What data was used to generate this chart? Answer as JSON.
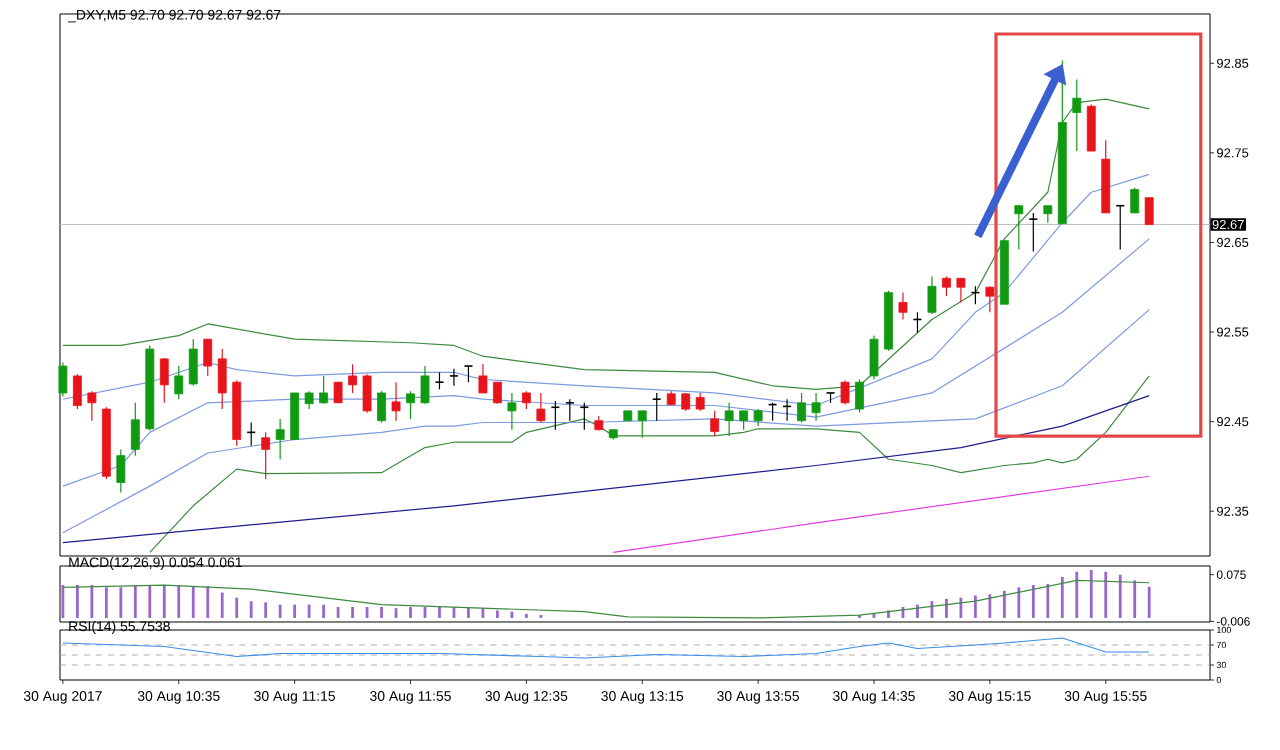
{
  "chart_data": [
    {
      "type": "candlestick",
      "title": "_DXY,M5 92.70 92.70 92.67 92.67",
      "x": [
        "2017-08-30T09:55",
        "2017-08-30T10:00",
        "2017-08-30T10:05",
        "2017-08-30T10:10",
        "2017-08-30T10:15",
        "2017-08-30T10:20",
        "2017-08-30T10:25",
        "2017-08-30T10:30",
        "2017-08-30T10:35",
        "2017-08-30T10:40",
        "2017-08-30T10:45",
        "2017-08-30T10:50",
        "2017-08-30T10:55",
        "2017-08-30T11:00",
        "2017-08-30T11:05",
        "2017-08-30T11:10",
        "2017-08-30T11:15",
        "2017-08-30T11:20",
        "2017-08-30T11:25",
        "2017-08-30T11:30",
        "2017-08-30T11:35",
        "2017-08-30T11:40",
        "2017-08-30T11:45",
        "2017-08-30T11:50",
        "2017-08-30T11:55",
        "2017-08-30T12:00",
        "2017-08-30T12:05",
        "2017-08-30T12:10",
        "2017-08-30T12:15",
        "2017-08-30T12:20",
        "2017-08-30T12:25",
        "2017-08-30T12:30",
        "2017-08-30T12:35",
        "2017-08-30T12:40",
        "2017-08-30T12:45",
        "2017-08-30T12:50",
        "2017-08-30T12:55",
        "2017-08-30T13:00",
        "2017-08-30T13:05",
        "2017-08-30T13:10",
        "2017-08-30T13:15",
        "2017-08-30T13:20",
        "2017-08-30T13:25",
        "2017-08-30T13:30",
        "2017-08-30T13:35",
        "2017-08-30T13:40",
        "2017-08-30T13:45",
        "2017-08-30T13:50",
        "2017-08-30T13:55",
        "2017-08-30T14:00",
        "2017-08-30T14:05",
        "2017-08-30T14:10",
        "2017-08-30T14:15",
        "2017-08-30T14:20",
        "2017-08-30T14:25",
        "2017-08-30T14:30",
        "2017-08-30T14:35",
        "2017-08-30T14:40",
        "2017-08-30T14:45",
        "2017-08-30T14:50",
        "2017-08-30T14:55",
        "2017-08-30T15:00",
        "2017-08-30T15:05",
        "2017-08-30T15:10",
        "2017-08-30T15:15",
        "2017-08-30T15:20",
        "2017-08-30T15:25",
        "2017-08-30T15:30",
        "2017-08-30T15:35",
        "2017-08-30T15:40",
        "2017-08-30T15:45",
        "2017-08-30T15:50",
        "2017-08-30T15:55",
        "2017-08-30T16:00",
        "2017-08-30T16:05",
        "2017-08-30T16:10"
      ],
      "ohlc": [
        [
          92.482,
          92.516,
          92.478,
          92.512
        ],
        [
          92.501,
          92.503,
          92.464,
          92.468
        ],
        [
          92.482,
          92.484,
          92.451,
          92.471
        ],
        [
          92.464,
          92.466,
          92.386,
          92.389
        ],
        [
          92.382,
          92.419,
          92.371,
          92.412
        ],
        [
          92.419,
          92.471,
          92.412,
          92.452
        ],
        [
          92.442,
          92.535,
          92.44,
          92.531
        ],
        [
          92.52,
          92.521,
          92.471,
          92.491
        ],
        [
          92.481,
          92.512,
          92.475,
          92.501
        ],
        [
          92.492,
          92.542,
          92.49,
          92.531
        ],
        [
          92.542,
          92.542,
          92.501,
          92.512
        ],
        [
          92.52,
          92.531,
          92.464,
          92.482
        ],
        [
          92.494,
          92.496,
          92.423,
          92.43
        ],
        [
          92.438,
          92.449,
          92.423,
          92.438
        ],
        [
          92.432,
          92.438,
          92.386,
          92.419
        ],
        [
          92.43,
          92.453,
          92.408,
          92.441
        ],
        [
          92.43,
          92.482,
          92.43,
          92.482
        ],
        [
          92.47,
          92.484,
          92.464,
          92.482
        ],
        [
          92.471,
          92.501,
          92.47,
          92.482
        ],
        [
          92.494,
          92.494,
          92.471,
          92.471
        ],
        [
          92.501,
          92.514,
          92.482,
          92.491
        ],
        [
          92.501,
          92.503,
          92.46,
          92.462
        ],
        [
          92.451,
          92.484,
          92.449,
          92.482
        ],
        [
          92.472,
          92.494,
          92.451,
          92.462
        ],
        [
          92.471,
          92.484,
          92.453,
          92.481
        ],
        [
          92.471,
          92.512,
          92.47,
          92.501
        ],
        [
          92.494,
          92.505,
          92.486,
          92.494
        ],
        [
          92.501,
          92.509,
          92.49,
          92.501
        ],
        [
          92.512,
          92.512,
          92.494,
          92.512
        ],
        [
          92.501,
          92.514,
          92.482,
          92.482
        ],
        [
          92.494,
          92.494,
          92.47,
          92.471
        ],
        [
          92.462,
          92.482,
          92.441,
          92.471
        ],
        [
          92.482,
          92.484,
          92.464,
          92.471
        ],
        [
          92.464,
          92.482,
          92.449,
          92.451
        ],
        [
          92.466,
          92.473,
          92.441,
          92.466
        ],
        [
          92.471,
          92.475,
          92.451,
          92.471
        ],
        [
          92.466,
          92.471,
          92.441,
          92.466
        ],
        [
          92.451,
          92.456,
          92.44,
          92.441
        ],
        [
          92.432,
          92.441,
          92.43,
          92.441
        ],
        [
          92.451,
          92.462,
          92.451,
          92.462
        ],
        [
          92.451,
          92.462,
          92.432,
          92.462
        ],
        [
          92.475,
          92.482,
          92.451,
          92.475
        ],
        [
          92.481,
          92.484,
          92.469,
          92.469
        ],
        [
          92.481,
          92.482,
          92.462,
          92.464
        ],
        [
          92.477,
          92.482,
          92.462,
          92.464
        ],
        [
          92.453,
          92.462,
          92.434,
          92.439
        ],
        [
          92.451,
          92.471,
          92.434,
          92.462
        ],
        [
          92.451,
          92.462,
          92.441,
          92.462
        ],
        [
          92.451,
          92.464,
          92.445,
          92.462
        ],
        [
          92.469,
          92.471,
          92.451,
          92.469
        ],
        [
          92.467,
          92.475,
          92.451,
          92.467
        ],
        [
          92.451,
          92.482,
          92.449,
          92.471
        ],
        [
          92.46,
          92.482,
          92.451,
          92.471
        ],
        [
          92.482,
          92.482,
          92.471,
          92.482
        ],
        [
          92.494,
          92.496,
          92.469,
          92.471
        ],
        [
          92.464,
          92.497,
          92.46,
          92.494
        ],
        [
          92.501,
          92.546,
          92.497,
          92.542
        ],
        [
          92.531,
          92.596,
          92.529,
          92.594
        ],
        [
          92.583,
          92.594,
          92.564,
          92.572
        ],
        [
          92.564,
          92.572,
          92.549,
          92.564
        ],
        [
          92.572,
          92.612,
          92.57,
          92.601
        ],
        [
          92.61,
          92.612,
          92.59,
          92.6
        ],
        [
          92.61,
          92.61,
          92.583,
          92.6
        ],
        [
          92.594,
          92.601,
          92.581,
          92.594
        ],
        [
          92.6,
          92.601,
          92.572,
          92.59
        ],
        [
          92.581,
          92.652,
          92.581,
          92.652
        ],
        [
          92.682,
          92.692,
          92.642,
          92.691
        ],
        [
          92.676,
          92.683,
          92.64,
          92.676
        ],
        [
          92.682,
          92.691,
          92.672,
          92.691
        ],
        [
          92.671,
          92.853,
          92.671,
          92.784
        ],
        [
          92.795,
          92.832,
          92.752,
          92.811
        ],
        [
          92.802,
          92.804,
          92.752,
          92.752
        ],
        [
          92.743,
          92.764,
          92.683,
          92.683
        ],
        [
          92.691,
          92.691,
          92.642,
          92.691
        ],
        [
          92.683,
          92.711,
          92.683,
          92.709
        ],
        [
          92.7,
          92.7,
          92.67,
          92.67
        ]
      ],
      "colors": [
        "#119a11",
        "#e8141c",
        "#e8141c",
        "#e8141c",
        "#119a11",
        "#119a11",
        "#119a11",
        "#e8141c",
        "#119a11",
        "#119a11",
        "#e8141c",
        "#e8141c",
        "#e8141c",
        "#000000",
        "#e8141c",
        "#119a11",
        "#119a11",
        "#119a11",
        "#119a11",
        "#e8141c",
        "#e8141c",
        "#e8141c",
        "#119a11",
        "#e8141c",
        "#119a11",
        "#119a11",
        "#000000",
        "#000000",
        "#000000",
        "#e8141c",
        "#e8141c",
        "#119a11",
        "#e8141c",
        "#e8141c",
        "#000000",
        "#000000",
        "#000000",
        "#e8141c",
        "#119a11",
        "#119a11",
        "#119a11",
        "#000000",
        "#e8141c",
        "#e8141c",
        "#e8141c",
        "#e8141c",
        "#119a11",
        "#119a11",
        "#119a11",
        "#000000",
        "#000000",
        "#119a11",
        "#119a11",
        "#000000",
        "#e8141c",
        "#119a11",
        "#119a11",
        "#119a11",
        "#e8141c",
        "#000000",
        "#119a11",
        "#e8141c",
        "#e8141c",
        "#000000",
        "#e8141c",
        "#119a11",
        "#119a11",
        "#000000",
        "#119a11",
        "#119a11",
        "#119a11",
        "#e8141c",
        "#e8141c",
        "#000000",
        "#119a11",
        "#e8141c"
      ],
      "series": [
        {
          "type": "line",
          "color": "#3e8a3e",
          "x": [
            "2017-08-30T09:55",
            "2017-08-30T10:15",
            "2017-08-30T10:35",
            "2017-08-30T10:45",
            "2017-08-30T11:15",
            "2017-08-30T11:55",
            "2017-08-30T12:10",
            "2017-08-30T12:20",
            "2017-08-30T12:55",
            "2017-08-30T13:40",
            "2017-08-30T14:00",
            "2017-08-30T14:15",
            "2017-08-30T14:30",
            "2017-08-30T14:55",
            "2017-08-30T15:10",
            "2017-08-30T15:20",
            "2017-08-30T15:35",
            "2017-08-30T15:40",
            "2017-08-30T15:45",
            "2017-08-30T15:55",
            "2017-08-30T16:10"
          ],
          "values": [
            92.535,
            92.535,
            92.546,
            92.559,
            92.542,
            92.538,
            92.535,
            92.523,
            92.508,
            92.505,
            92.49,
            92.486,
            92.49,
            92.564,
            92.594,
            92.654,
            92.706,
            92.784,
            92.806,
            92.81,
            92.799
          ]
        },
        {
          "type": "line",
          "color": "#3e8a3e",
          "x": [
            "2017-08-30T10:25",
            "2017-08-30T10:40",
            "2017-08-30T10:55",
            "2017-08-30T11:05",
            "2017-08-30T11:45",
            "2017-08-30T12:00",
            "2017-08-30T12:10",
            "2017-08-30T12:20",
            "2017-08-30T12:30",
            "2017-08-30T12:35",
            "2017-08-30T12:55",
            "2017-08-30T13:00",
            "2017-08-30T13:05",
            "2017-08-30T13:40",
            "2017-08-30T13:50",
            "2017-08-30T13:55",
            "2017-08-30T14:15",
            "2017-08-30T14:30",
            "2017-08-30T14:40",
            "2017-08-30T14:55",
            "2017-08-30T15:05",
            "2017-08-30T15:20",
            "2017-08-30T15:30",
            "2017-08-30T15:35",
            "2017-08-30T15:40",
            "2017-08-30T15:45",
            "2017-08-30T15:55",
            "2017-08-30T16:10"
          ],
          "values": [
            92.304,
            92.356,
            92.397,
            92.392,
            92.393,
            92.421,
            92.427,
            92.427,
            92.427,
            92.438,
            92.453,
            92.445,
            92.434,
            92.434,
            92.438,
            92.442,
            92.442,
            92.438,
            92.408,
            92.401,
            92.393,
            92.401,
            92.404,
            92.408,
            92.404,
            92.408,
            92.438,
            92.501
          ]
        },
        {
          "type": "line",
          "color": "#7b9be0",
          "x": [
            "2017-08-30T09:55",
            "2017-08-30T10:25",
            "2017-08-30T10:45",
            "2017-08-30T10:55",
            "2017-08-30T11:15",
            "2017-08-30T11:45",
            "2017-08-30T12:10",
            "2017-08-30T12:20",
            "2017-08-30T12:55",
            "2017-08-30T13:40",
            "2017-08-30T14:15",
            "2017-08-30T14:55",
            "2017-08-30T15:10",
            "2017-08-30T15:20",
            "2017-08-30T15:40",
            "2017-08-30T15:50",
            "2017-08-30T16:10"
          ],
          "values": [
            92.475,
            92.494,
            92.516,
            92.508,
            92.501,
            92.505,
            92.505,
            92.497,
            92.49,
            92.482,
            92.468,
            92.52,
            92.572,
            92.594,
            92.672,
            92.706,
            92.726
          ]
        },
        {
          "type": "line",
          "color": "#7b9be0",
          "x": [
            "2017-08-30T09:55",
            "2017-08-30T10:15",
            "2017-08-30T10:25",
            "2017-08-30T10:45",
            "2017-08-30T11:15",
            "2017-08-30T11:45",
            "2017-08-30T12:10",
            "2017-08-30T12:20",
            "2017-08-30T12:55",
            "2017-08-30T13:40",
            "2017-08-30T14:15",
            "2017-08-30T14:55",
            "2017-08-30T15:40",
            "2017-08-30T16:10"
          ],
          "values": [
            92.378,
            92.401,
            92.438,
            92.471,
            92.475,
            92.475,
            92.479,
            92.475,
            92.468,
            92.468,
            92.455,
            92.482,
            92.572,
            92.654
          ]
        },
        {
          "type": "line",
          "color": "#7b9be0",
          "x": [
            "2017-08-30T09:55",
            "2017-08-30T10:25",
            "2017-08-30T10:45",
            "2017-08-30T11:15",
            "2017-08-30T11:45",
            "2017-08-30T12:00",
            "2017-08-30T12:10",
            "2017-08-30T12:20",
            "2017-08-30T12:55",
            "2017-08-30T13:40",
            "2017-08-30T14:15",
            "2017-08-30T15:10",
            "2017-08-30T15:40",
            "2017-08-30T16:10"
          ],
          "values": [
            92.326,
            92.378,
            92.415,
            92.43,
            92.438,
            92.445,
            92.445,
            92.449,
            92.449,
            92.453,
            92.445,
            92.453,
            92.49,
            92.575
          ]
        },
        {
          "type": "line",
          "color": "#1c1c8c",
          "x": [
            "2017-08-30T09:55",
            "2017-08-30T12:10",
            "2017-08-30T14:15",
            "2017-08-30T15:05",
            "2017-08-30T15:40",
            "2017-08-30T16:10"
          ],
          "values": [
            92.315,
            92.356,
            92.401,
            92.421,
            92.445,
            92.479
          ]
        },
        {
          "type": "line",
          "color": "#e040e0",
          "x": [
            "2017-08-30T13:05",
            "2017-08-30T14:15",
            "2017-08-30T16:10"
          ],
          "values": [
            92.304,
            92.337,
            92.389
          ]
        }
      ],
      "xlim": [
        "2017-08-30T09:54",
        "2017-08-30T16:31"
      ],
      "ylim": [
        92.3,
        92.905
      ],
      "yticks": [
        92.35,
        92.45,
        92.55,
        92.65,
        92.75,
        92.85
      ],
      "ref_lines": [
        {
          "axis": "y",
          "value": 92.67,
          "label": "92.67",
          "color": "#c0c0c0"
        }
      ],
      "tick_labels": "y"
    },
    {
      "type": "bar",
      "title": "MACD(12,26,9) 0.054 0.061",
      "x": [
        "2017-08-30T09:55",
        "2017-08-30T10:00",
        "2017-08-30T10:05",
        "2017-08-30T10:10",
        "2017-08-30T10:15",
        "2017-08-30T10:20",
        "2017-08-30T10:25",
        "2017-08-30T10:30",
        "2017-08-30T10:35",
        "2017-08-30T10:40",
        "2017-08-30T10:45",
        "2017-08-30T10:50",
        "2017-08-30T10:55",
        "2017-08-30T11:00",
        "2017-08-30T11:05",
        "2017-08-30T11:10",
        "2017-08-30T11:15",
        "2017-08-30T11:20",
        "2017-08-30T11:25",
        "2017-08-30T11:30",
        "2017-08-30T11:35",
        "2017-08-30T11:40",
        "2017-08-30T11:45",
        "2017-08-30T11:50",
        "2017-08-30T11:55",
        "2017-08-30T12:00",
        "2017-08-30T12:05",
        "2017-08-30T12:10",
        "2017-08-30T12:15",
        "2017-08-30T12:20",
        "2017-08-30T12:25",
        "2017-08-30T12:30",
        "2017-08-30T12:35",
        "2017-08-30T12:40",
        "2017-08-30T12:45",
        "2017-08-30T12:50",
        "2017-08-30T12:55",
        "2017-08-30T13:00",
        "2017-08-30T13:05",
        "2017-08-30T13:10",
        "2017-08-30T13:15",
        "2017-08-30T13:20",
        "2017-08-30T13:25",
        "2017-08-30T13:30",
        "2017-08-30T13:35",
        "2017-08-30T13:40",
        "2017-08-30T13:45",
        "2017-08-30T13:50",
        "2017-08-30T13:55",
        "2017-08-30T14:00",
        "2017-08-30T14:05",
        "2017-08-30T14:10",
        "2017-08-30T14:15",
        "2017-08-30T14:20",
        "2017-08-30T14:25",
        "2017-08-30T14:30",
        "2017-08-30T14:35",
        "2017-08-30T14:40",
        "2017-08-30T14:45",
        "2017-08-30T14:50",
        "2017-08-30T14:55",
        "2017-08-30T15:00",
        "2017-08-30T15:05",
        "2017-08-30T15:10",
        "2017-08-30T15:15",
        "2017-08-30T15:20",
        "2017-08-30T15:25",
        "2017-08-30T15:30",
        "2017-08-30T15:35",
        "2017-08-30T15:40",
        "2017-08-30T15:45",
        "2017-08-30T15:50",
        "2017-08-30T15:55",
        "2017-08-30T16:00",
        "2017-08-30T16:05",
        "2017-08-30T16:10"
      ],
      "series": [
        {
          "color": "#9966cc",
          "values": [
            0.057,
            0.057,
            0.057,
            0.053,
            0.053,
            0.056,
            0.056,
            0.056,
            0.056,
            0.055,
            0.055,
            0.044,
            0.035,
            0.029,
            0.027,
            0.023,
            0.023,
            0.023,
            0.023,
            0.019,
            0.019,
            0.019,
            0.019,
            0.017,
            0.019,
            0.019,
            0.019,
            0.019,
            0.019,
            0.017,
            0.013,
            0.011,
            0.007,
            0.005,
            null,
            null,
            null,
            null,
            0,
            0,
            0,
            0,
            0,
            0,
            0,
            0,
            0,
            0,
            0,
            0,
            0,
            0,
            0,
            0,
            0,
            0.005,
            0.008,
            0.013,
            0.019,
            0.023,
            0.029,
            0.033,
            0.035,
            0.039,
            0.041,
            0.047,
            0.053,
            0.057,
            0.059,
            0.071,
            0.08,
            0.083,
            0.08,
            0.075,
            0.065,
            0.054
          ]
        },
        {
          "type": "line",
          "color": "#3e8a3e",
          "x": [
            "2017-08-30T09:55",
            "2017-08-30T10:30",
            "2017-08-30T11:00",
            "2017-08-30T11:45",
            "2017-08-30T12:55",
            "2017-08-30T13:10",
            "2017-08-30T13:55",
            "2017-08-30T14:30",
            "2017-08-30T15:10",
            "2017-08-30T15:45",
            "2017-08-30T16:10"
          ],
          "values": [
            0.053,
            0.057,
            0.05,
            0.023,
            0.011,
            0.002,
            0,
            0.005,
            0.029,
            0.065,
            0.061
          ]
        }
      ],
      "xlim": [
        "2017-08-30T09:54",
        "2017-08-30T16:31"
      ],
      "ylim": [
        -0.007,
        0.09
      ],
      "yticks": [
        -0.006,
        0.075
      ],
      "tick_labels": "y"
    },
    {
      "type": "line",
      "title": "RSI(14) 55.7538",
      "series": [
        {
          "color": "#3a8ee6",
          "x": [
            "2017-08-30T09:55",
            "2017-08-30T10:30",
            "2017-08-30T10:55",
            "2017-08-30T11:10",
            "2017-08-30T12:05",
            "2017-08-30T12:40",
            "2017-08-30T12:55",
            "2017-08-30T13:20",
            "2017-08-30T13:50",
            "2017-08-30T14:15",
            "2017-08-30T14:30",
            "2017-08-30T14:40",
            "2017-08-30T14:50",
            "2017-08-30T15:10",
            "2017-08-30T15:20",
            "2017-08-30T15:40",
            "2017-08-30T15:55",
            "2017-08-30T16:10"
          ],
          "values": [
            74,
            67,
            47,
            53,
            53,
            47,
            44,
            51,
            47,
            53,
            67,
            74,
            63,
            70,
            74,
            84,
            56,
            56
          ]
        }
      ],
      "xlim": [
        "2017-08-30T09:54",
        "2017-08-30T16:31"
      ],
      "ylim": [
        0,
        100
      ],
      "yticks": [
        0,
        30,
        70,
        100
      ],
      "ref_lines": [
        {
          "axis": "y",
          "value": 70,
          "color": "#b0b0b0",
          "line_style": "dashed"
        },
        {
          "axis": "y",
          "value": 50,
          "color": "#b0b0b0",
          "line_style": "dashed"
        },
        {
          "axis": "y",
          "value": 30,
          "color": "#b0b0b0",
          "line_style": "dashed"
        }
      ],
      "xticks": [
        {
          "value": "2017-08-30T09:55",
          "label": "30 Aug 2017"
        },
        {
          "value": "2017-08-30T10:35",
          "label": "30 Aug 10:35"
        },
        {
          "value": "2017-08-30T11:15",
          "label": "30 Aug 11:15"
        },
        {
          "value": "2017-08-30T11:55",
          "label": "30 Aug 11:55"
        },
        {
          "value": "2017-08-30T12:35",
          "label": "30 Aug 12:35"
        },
        {
          "value": "2017-08-30T13:15",
          "label": "30 Aug 13:15"
        },
        {
          "value": "2017-08-30T13:55",
          "label": "30 Aug 13:55"
        },
        {
          "value": "2017-08-30T14:35",
          "label": "30 Aug 14:35"
        },
        {
          "value": "2017-08-30T15:15",
          "label": "30 Aug 15:15"
        },
        {
          "value": "2017-08-30T15:55",
          "label": "30 Aug 15:55"
        }
      ]
    }
  ]
}
